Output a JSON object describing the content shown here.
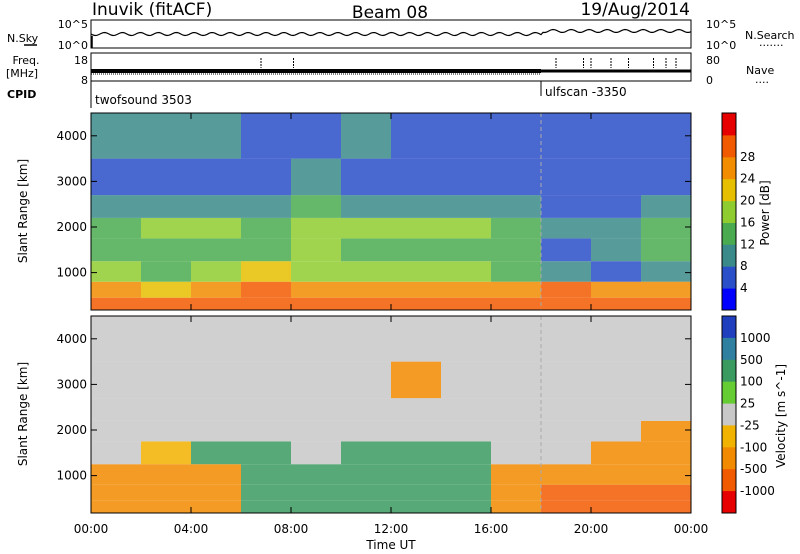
{
  "header": {
    "station": "Inuvik (fitACF)",
    "beam": "Beam 08",
    "date": "19/Aug/2014"
  },
  "noise_panel": {
    "left_label": "N.Sky",
    "right_label": "N.Search",
    "left_ticks": [
      "10^5",
      "10^0"
    ],
    "right_ticks": [
      "10^5",
      "10^0"
    ],
    "right_marker": "......."
  },
  "freq_panel": {
    "left_label": "Freq.",
    "left_unit": "[MHz]",
    "left_ticks": [
      "18",
      "8"
    ],
    "right_label": "Nave",
    "right_ticks": [
      "80",
      "0"
    ],
    "right_marker": "...."
  },
  "cpid": {
    "label": "CPID",
    "modes": [
      {
        "name": "twofsound 3503",
        "start_hour": 0
      },
      {
        "name": "ulfscan -3350",
        "start_hour": 18
      }
    ]
  },
  "x_axis": {
    "label": "Time UT",
    "range_hours": [
      0,
      24
    ],
    "tick_labels": [
      "00:00",
      "04:00",
      "08:00",
      "12:00",
      "16:00",
      "20:00",
      "00:00"
    ]
  },
  "chart_data": [
    {
      "type": "heatmap",
      "name": "power",
      "ylabel": "Slant Range [km]",
      "ylim": [
        180,
        4500
      ],
      "yticks": [
        "1000",
        "2000",
        "3000",
        "4000"
      ],
      "colorbar": {
        "label": "Power [dB]",
        "tick_labels": [
          "4",
          "8",
          "12",
          "16",
          "20",
          "24",
          "28"
        ],
        "colors": [
          "#0000ff",
          "#2a4fc8",
          "#3a8a8a",
          "#4aaa50",
          "#8fcc30",
          "#e6c000",
          "#f28c00",
          "#f25a00",
          "#e60000"
        ]
      },
      "x": [
        0,
        2,
        4,
        6,
        8,
        10,
        12,
        14,
        16,
        18,
        20,
        22,
        24
      ],
      "y": [
        300,
        600,
        1000,
        1500,
        2000,
        2400,
        3000,
        4000
      ],
      "values": [
        [
          28,
          28,
          28,
          28,
          28,
          28,
          28,
          28,
          28,
          28,
          28,
          28
        ],
        [
          24,
          20,
          24,
          28,
          24,
          24,
          24,
          24,
          24,
          28,
          24,
          24
        ],
        [
          16,
          12,
          16,
          20,
          16,
          16,
          16,
          16,
          12,
          8,
          4,
          8
        ],
        [
          12,
          12,
          12,
          12,
          16,
          12,
          12,
          12,
          12,
          4,
          8,
          12
        ],
        [
          12,
          16,
          16,
          12,
          16,
          16,
          16,
          16,
          12,
          8,
          8,
          12
        ],
        [
          8,
          8,
          8,
          8,
          12,
          8,
          8,
          8,
          8,
          4,
          4,
          8
        ],
        [
          4,
          4,
          4,
          4,
          8,
          4,
          4,
          4,
          4,
          4,
          4,
          4
        ],
        [
          8,
          8,
          8,
          4,
          4,
          8,
          4,
          4,
          4,
          4,
          4,
          4
        ]
      ]
    },
    {
      "type": "heatmap",
      "name": "velocity",
      "ylabel": "Slant Range [km]",
      "ylim": [
        180,
        4500
      ],
      "yticks": [
        "1000",
        "2000",
        "3000",
        "4000"
      ],
      "colorbar": {
        "label": "Velocity [m s^-1]",
        "tick_labels": [
          "1000",
          "500",
          "100",
          "25",
          "-25",
          "-100",
          "-500",
          "-1000"
        ],
        "colors": [
          "#1f3fbf",
          "#2f7fa0",
          "#3a9a60",
          "#66cc33",
          "#c8c8c8",
          "#f2b200",
          "#f28a00",
          "#f25a00",
          "#e60000"
        ]
      },
      "x": [
        0,
        2,
        4,
        6,
        8,
        10,
        12,
        14,
        16,
        18,
        20,
        22,
        24
      ],
      "y": [
        300,
        600,
        1000,
        1500,
        2000,
        2400,
        3000,
        4000
      ],
      "values": [
        [
          -200,
          -200,
          -150,
          100,
          200,
          150,
          100,
          100,
          -150,
          -800,
          -800,
          -800
        ],
        [
          -300,
          -200,
          -150,
          100,
          200,
          150,
          100,
          150,
          -200,
          -800,
          -800,
          -700
        ],
        [
          -300,
          -300,
          -200,
          200,
          150,
          150,
          200,
          200,
          -300,
          -150,
          -150,
          -300
        ],
        [
          0,
          -50,
          100,
          200,
          0,
          100,
          100,
          150,
          0,
          0,
          -200,
          -400
        ],
        [
          0,
          0,
          0,
          0,
          0,
          0,
          0,
          0,
          0,
          0,
          0,
          -400
        ],
        [
          0,
          0,
          0,
          0,
          0,
          0,
          0,
          0,
          0,
          0,
          0,
          0
        ],
        [
          0,
          0,
          0,
          0,
          0,
          0,
          -200,
          0,
          0,
          0,
          0,
          0
        ],
        [
          0,
          0,
          0,
          0,
          0,
          0,
          0,
          0,
          0,
          0,
          0,
          0
        ]
      ]
    }
  ]
}
